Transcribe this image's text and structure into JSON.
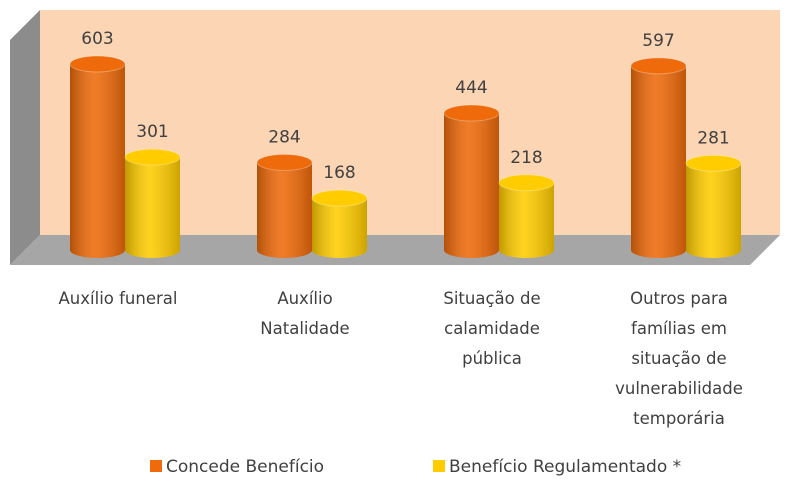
{
  "chart_data": {
    "type": "bar3d",
    "categories": [
      "Auxílio funeral",
      "Auxílio Natalidade",
      "Situação de calamidade pública",
      "Outros para famílias em situação de vulnerabilidade temporária"
    ],
    "series": [
      {
        "name": "Concede Benefício",
        "color": "#ee6a0a",
        "values": [
          603,
          284,
          444,
          597
        ]
      },
      {
        "name": "Benefício Regulamentado *",
        "color": "#ffcc00",
        "values": [
          301,
          168,
          218,
          281
        ]
      }
    ],
    "legend": "bottom"
  }
}
